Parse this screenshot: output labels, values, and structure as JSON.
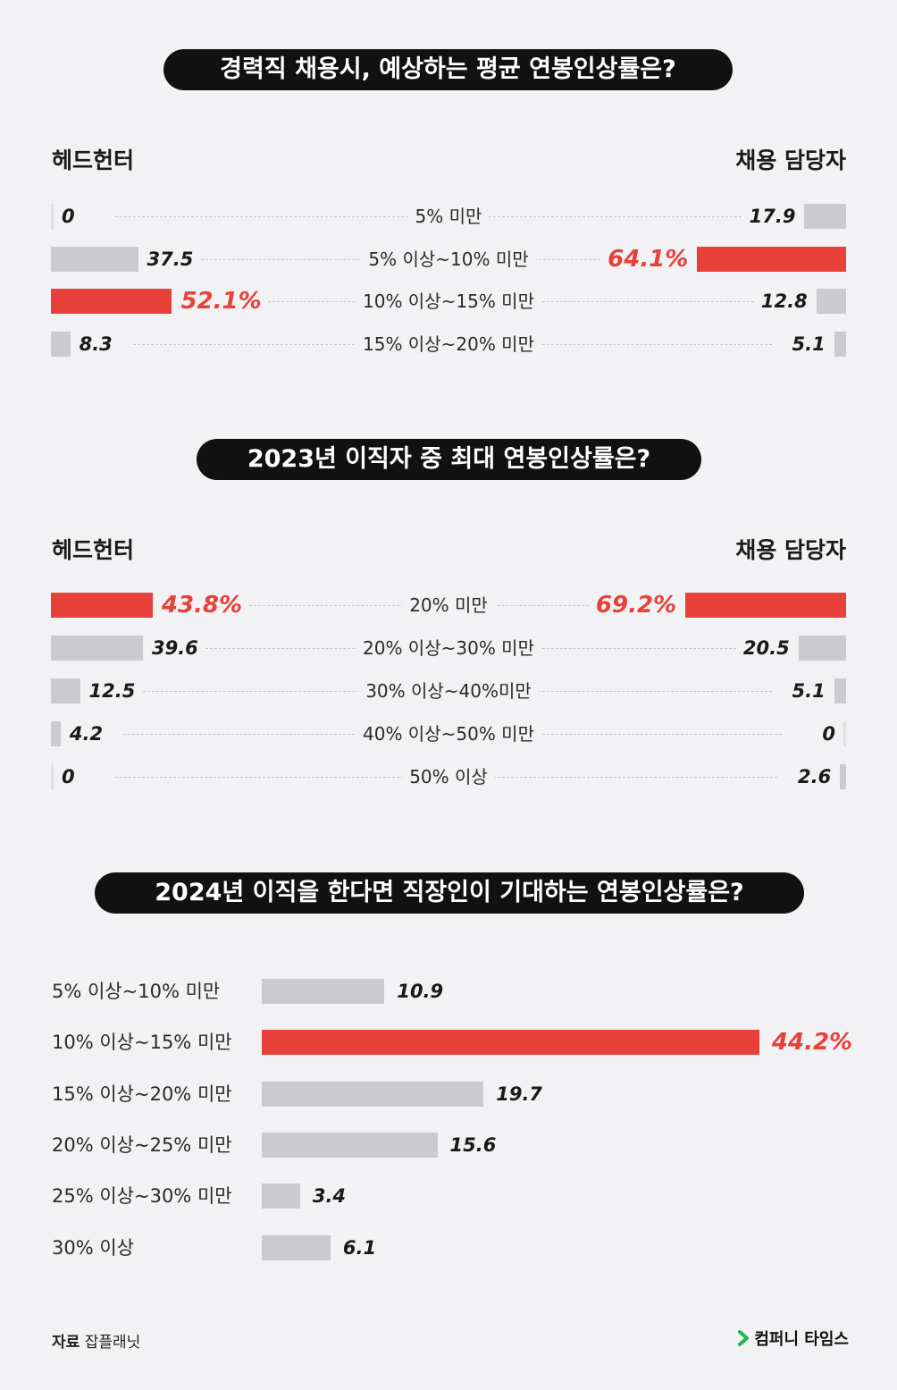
{
  "source": {
    "label": "자료",
    "value": "잡플래닛"
  },
  "brand": {
    "name": "컴퍼니 타임스",
    "accent": "#1db954"
  },
  "colors": {
    "highlight": "#e8413a",
    "bar": "#cbcbcd",
    "background": "#f2f2f4",
    "pill": "#111111"
  },
  "chart_data": [
    {
      "type": "bar",
      "title": "경력직 채용시, 예상하는 평균 연봉인상률은?",
      "left_label": "헤드헌터",
      "right_label": "채용 담당자",
      "categories": [
        "5% 미만",
        "5% 이상~10% 미만",
        "10% 이상~15% 미만",
        "15% 이상~20% 미만"
      ],
      "series": [
        {
          "name": "헤드헌터",
          "values": [
            0,
            37.5,
            52.1,
            8.3
          ],
          "labels": [
            "0",
            "37.5",
            "52.1%",
            "8.3"
          ],
          "highlight": [
            false,
            false,
            true,
            false
          ]
        },
        {
          "name": "채용 담당자",
          "values": [
            17.9,
            64.1,
            12.8,
            5.1
          ],
          "labels": [
            "17.9",
            "64.1%",
            "12.8",
            "5.1"
          ],
          "highlight": [
            false,
            true,
            false,
            false
          ]
        }
      ]
    },
    {
      "type": "bar",
      "title": "2023년 이직자 중 최대 연봉인상률은?",
      "left_label": "헤드헌터",
      "right_label": "채용 담당자",
      "categories": [
        "20% 미만",
        "20% 이상~30% 미만",
        "30% 이상~40%미만",
        "40% 이상~50% 미만",
        "50% 이상"
      ],
      "series": [
        {
          "name": "헤드헌터",
          "values": [
            43.8,
            39.6,
            12.5,
            4.2,
            0
          ],
          "labels": [
            "43.8%",
            "39.6",
            "12.5",
            "4.2",
            "0"
          ],
          "highlight": [
            true,
            false,
            false,
            false,
            false
          ]
        },
        {
          "name": "채용 담당자",
          "values": [
            69.2,
            20.5,
            5.1,
            0,
            2.6
          ],
          "labels": [
            "69.2%",
            "20.5",
            "5.1",
            "0",
            "2.6"
          ],
          "highlight": [
            true,
            false,
            false,
            false,
            false
          ]
        }
      ]
    },
    {
      "type": "bar",
      "title": "2024년 이직을 한다면 직장인이 기대하는 연봉인상률은?",
      "categories": [
        "5% 이상~10% 미만",
        "10% 이상~15% 미만",
        "15% 이상~20% 미만",
        "20% 이상~25% 미만",
        "25% 이상~30% 미만",
        "30% 이상"
      ],
      "values": [
        10.9,
        44.2,
        19.7,
        15.6,
        3.4,
        6.1
      ],
      "labels": [
        "10.9",
        "44.2%",
        "19.7",
        "15.6",
        "3.4",
        "6.1"
      ],
      "highlight": [
        false,
        true,
        false,
        false,
        false,
        false
      ]
    }
  ]
}
